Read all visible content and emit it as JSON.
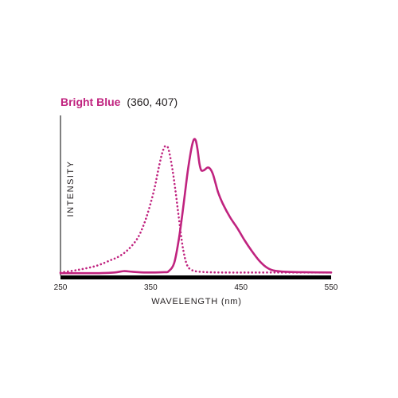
{
  "chart_data": {
    "type": "line",
    "title": "Bright Blue",
    "subtitle": "(360, 407)",
    "xlabel": "WAVELENGTH (nm)",
    "ylabel": "INTENSITY",
    "xlim": [
      250,
      550
    ],
    "ylim": [
      0,
      100
    ],
    "x_ticks": [
      250,
      350,
      450,
      550
    ],
    "grid": false,
    "legend": "none",
    "colors": {
      "series": "#c0237f",
      "title": "#c0237f",
      "text": "#231f20",
      "axis": "#000000"
    },
    "series": [
      {
        "style": "dotted",
        "points": [
          [
            250,
            1
          ],
          [
            270,
            3
          ],
          [
            290,
            6
          ],
          [
            305,
            10
          ],
          [
            315,
            13
          ],
          [
            325,
            18
          ],
          [
            335,
            26
          ],
          [
            342,
            36
          ],
          [
            348,
            48
          ],
          [
            354,
            63
          ],
          [
            358,
            76
          ],
          [
            362,
            88
          ],
          [
            365,
            94
          ],
          [
            367,
            95
          ],
          [
            369,
            94
          ],
          [
            371,
            89
          ],
          [
            374,
            78
          ],
          [
            377,
            64
          ],
          [
            380,
            48
          ],
          [
            383,
            32
          ],
          [
            386,
            18
          ],
          [
            390,
            7
          ],
          [
            395,
            3
          ],
          [
            405,
            1.5
          ],
          [
            430,
            1
          ],
          [
            480,
            1
          ],
          [
            550,
            1
          ]
        ]
      },
      {
        "style": "solid",
        "points": [
          [
            250,
            0.5
          ],
          [
            290,
            0.5
          ],
          [
            310,
            1
          ],
          [
            320,
            2
          ],
          [
            330,
            1.5
          ],
          [
            345,
            1
          ],
          [
            365,
            1.2
          ],
          [
            370,
            2
          ],
          [
            376,
            8
          ],
          [
            381,
            25
          ],
          [
            385,
            44
          ],
          [
            388,
            60
          ],
          [
            391,
            76
          ],
          [
            394,
            89
          ],
          [
            396,
            96
          ],
          [
            398,
            100
          ],
          [
            400,
            99
          ],
          [
            402,
            92
          ],
          [
            404,
            82
          ],
          [
            406,
            77
          ],
          [
            409,
            77
          ],
          [
            413,
            79
          ],
          [
            416,
            78
          ],
          [
            419,
            74
          ],
          [
            422,
            67
          ],
          [
            425,
            60
          ],
          [
            430,
            52
          ],
          [
            438,
            42
          ],
          [
            446,
            34
          ],
          [
            454,
            25
          ],
          [
            462,
            17
          ],
          [
            470,
            10
          ],
          [
            478,
            5
          ],
          [
            486,
            2.5
          ],
          [
            500,
            1.5
          ],
          [
            520,
            1.2
          ],
          [
            550,
            1
          ]
        ]
      }
    ]
  }
}
